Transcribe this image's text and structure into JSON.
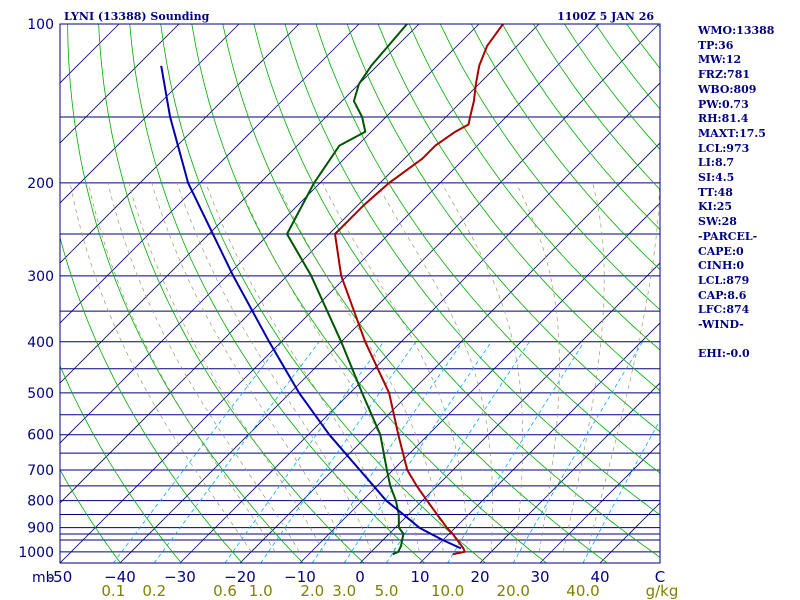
{
  "header": {
    "station": "LYNI (13388) Sounding",
    "datetime": "1100Z  5 JAN 26"
  },
  "indices": [
    "WMO:13388",
    "TP:36",
    "MW:12",
    "FRZ:781",
    "WBO:809",
    "PW:0.73",
    "RH:81.4",
    "MAXT:17.5",
    "LCL:973",
    "LI:8.7",
    "SI:4.5",
    "TT:48",
    "KI:25",
    "SW:28",
    "-PARCEL-",
    "CAPE:0",
    "CINH:0",
    "LCL:879",
    "CAP:8.6",
    "LFC:874",
    "-WIND-",
    "",
    "EHI:-0.0"
  ],
  "colors": {
    "border": "#000080",
    "isobar": "#000080",
    "isotherm": "#000080",
    "dry_adiabat": "#00aa00",
    "mixing_ratio": "#00aaff",
    "moist_adiabat": "#999966",
    "temperature": "#aa0000",
    "dewpoint": "#005500",
    "parcel": "#0000aa"
  },
  "chart_data": {
    "type": "line",
    "diagram": "skew-T log-P",
    "title": "LYNI (13388) Sounding",
    "xlabel": "",
    "ylabel": "mb",
    "x_unit": "C",
    "w_unit": "g/kg",
    "ylim": [
      1050,
      100
    ],
    "xlim_at_1050mb": [
      -50,
      50
    ],
    "pressure_ticks": [
      100,
      200,
      300,
      400,
      500,
      600,
      700,
      800,
      900,
      1000
    ],
    "pressure_tick_labels": [
      "100",
      "200",
      "300",
      "400",
      "500",
      "600",
      "700",
      "800",
      "900",
      "1000"
    ],
    "isobars": [
      100,
      150,
      200,
      250,
      300,
      350,
      400,
      450,
      500,
      550,
      600,
      650,
      700,
      750,
      800,
      850,
      900,
      925,
      950,
      1000
    ],
    "temperature_ticks": [
      -50,
      -40,
      -30,
      -20,
      -10,
      0,
      10,
      20,
      30,
      40
    ],
    "temperature_tick_labels": [
      "-50",
      "−40",
      "−30",
      "−20",
      "−10",
      "0",
      "10",
      "20",
      "30",
      "40"
    ],
    "temperature_unit_label": "C",
    "mixing_ratio_labels": [
      "0.1",
      "0.2",
      "0.6",
      "1.0",
      "2.0",
      "3.0",
      "5.0",
      "10.0",
      "20.0",
      "40.0"
    ],
    "mixing_ratio_unit_label": "g/kg",
    "grid": true,
    "series": [
      {
        "role": "temperature",
        "values": [
          {
            "p": 1011,
            "t": 14.0
          },
          {
            "p": 1000,
            "t": 15.6
          },
          {
            "p": 985,
            "t": 14.8
          },
          {
            "p": 950,
            "t": 12.4
          },
          {
            "p": 925,
            "t": 10.6
          },
          {
            "p": 900,
            "t": 8.6
          },
          {
            "p": 850,
            "t": 4.8
          },
          {
            "p": 800,
            "t": 0.8
          },
          {
            "p": 750,
            "t": -3.4
          },
          {
            "p": 700,
            "t": -7.6
          },
          {
            "p": 600,
            "t": -15.0
          },
          {
            "p": 500,
            "t": -23.5
          },
          {
            "p": 400,
            "t": -36.0
          },
          {
            "p": 300,
            "t": -51.0
          },
          {
            "p": 250,
            "t": -59.0
          },
          {
            "p": 220,
            "t": -59.0
          },
          {
            "p": 200,
            "t": -58.5
          },
          {
            "p": 180,
            "t": -57.0
          },
          {
            "p": 170,
            "t": -57.0
          },
          {
            "p": 160,
            "t": -56.0
          },
          {
            "p": 155,
            "t": -55.0
          },
          {
            "p": 150,
            "t": -56.0
          },
          {
            "p": 140,
            "t": -58.0
          },
          {
            "p": 130,
            "t": -60.5
          },
          {
            "p": 120,
            "t": -63.0
          },
          {
            "p": 110,
            "t": -65.0
          },
          {
            "p": 100,
            "t": -66.0
          }
        ]
      },
      {
        "role": "dewpoint",
        "values": [
          {
            "p": 1011,
            "t": 4.0
          },
          {
            "p": 1000,
            "t": 4.5
          },
          {
            "p": 975,
            "t": 4.0
          },
          {
            "p": 950,
            "t": 3.2
          },
          {
            "p": 925,
            "t": 2.4
          },
          {
            "p": 900,
            "t": 0.6
          },
          {
            "p": 850,
            "t": -1.6
          },
          {
            "p": 800,
            "t": -4.4
          },
          {
            "p": 750,
            "t": -7.8
          },
          {
            "p": 700,
            "t": -11.0
          },
          {
            "p": 600,
            "t": -18.0
          },
          {
            "p": 500,
            "t": -28.0
          },
          {
            "p": 400,
            "t": -40.0
          },
          {
            "p": 300,
            "t": -56.0
          },
          {
            "p": 250,
            "t": -67.0
          },
          {
            "p": 200,
            "t": -71.0
          },
          {
            "p": 170,
            "t": -73.0
          },
          {
            "p": 160,
            "t": -71.0
          },
          {
            "p": 150,
            "t": -74.0
          },
          {
            "p": 140,
            "t": -78.0
          },
          {
            "p": 130,
            "t": -80.0
          },
          {
            "p": 120,
            "t": -81.0
          },
          {
            "p": 100,
            "t": -82.0
          }
        ]
      },
      {
        "role": "parcel",
        "values": [
          {
            "p": 985,
            "t": 14.4
          },
          {
            "p": 950,
            "t": 10.0
          },
          {
            "p": 900,
            "t": 4.0
          },
          {
            "p": 850,
            "t": -0.8
          },
          {
            "p": 800,
            "t": -6.0
          },
          {
            "p": 700,
            "t": -15.5
          },
          {
            "p": 600,
            "t": -26.5
          },
          {
            "p": 500,
            "t": -38.5
          },
          {
            "p": 400,
            "t": -52.0
          },
          {
            "p": 300,
            "t": -69.0
          },
          {
            "p": 200,
            "t": -92.0
          },
          {
            "p": 150,
            "t": -106.0
          },
          {
            "p": 120,
            "t": -116.0
          }
        ]
      }
    ]
  }
}
